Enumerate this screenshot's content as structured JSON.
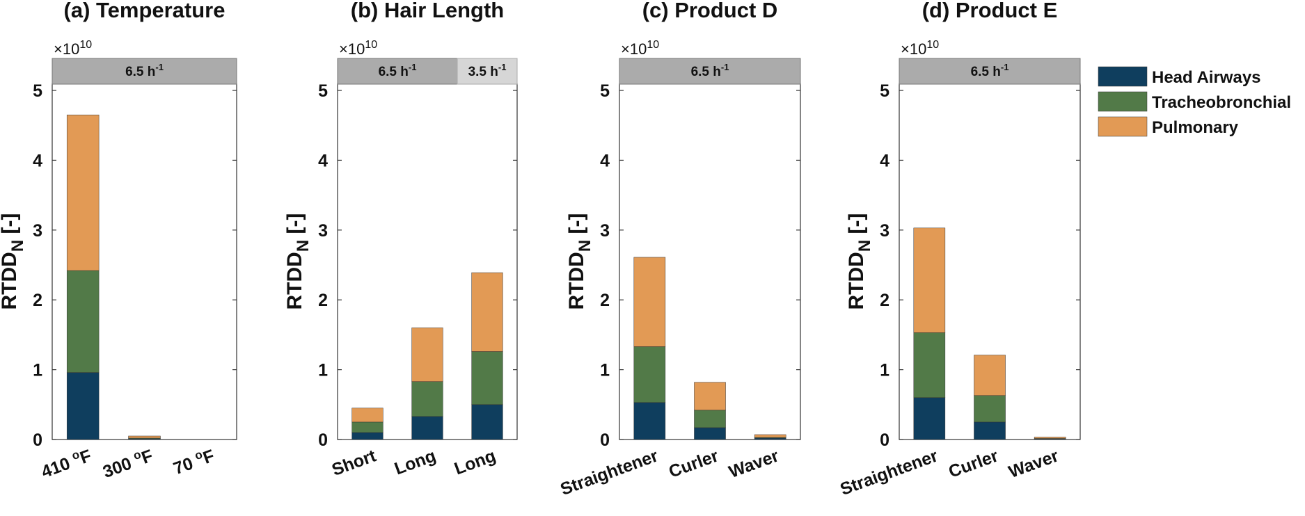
{
  "colors": {
    "head": "#0f3e5e",
    "tracheo": "#527a48",
    "pulm": "#e29a55",
    "band_dark": "#ababab",
    "band_light": "#d6d6d6"
  },
  "legend": [
    "Head Airways",
    "Tracheobronchial",
    "Pulmonary"
  ],
  "chart_data": [
    {
      "type": "bar",
      "stacked": true,
      "title": "(a) Temperature",
      "ylabel": "RTDD",
      "ylabel_sub": "N",
      "ylabel_suffix": " [-]",
      "multiplier": "×10",
      "multiplier_exp": "10",
      "ylim": [
        0,
        5.1
      ],
      "yticks": [
        "0",
        "1",
        "2",
        "3",
        "4",
        "5"
      ],
      "bands": [
        {
          "label": "6.5 h",
          "sup": "-1",
          "shade": "dark",
          "from": 0,
          "to": 3
        }
      ],
      "categories": [
        {
          "label": "410 ",
          "sup": "o",
          "tail": "F"
        },
        {
          "label": "300 ",
          "sup": "o",
          "tail": "F"
        },
        {
          "label": "70 ",
          "sup": "o",
          "tail": "F"
        }
      ],
      "series": [
        {
          "name": "Head Airways",
          "values": [
            0.96,
            0.01,
            0
          ]
        },
        {
          "name": "Tracheobronchial",
          "values": [
            1.46,
            0.01,
            0
          ]
        },
        {
          "name": "Pulmonary",
          "values": [
            2.23,
            0.03,
            0
          ]
        }
      ]
    },
    {
      "type": "bar",
      "stacked": true,
      "title": "(b) Hair Length",
      "ylabel": "RTDD",
      "ylabel_sub": "N",
      "ylabel_suffix": " [-]",
      "multiplier": "×10",
      "multiplier_exp": "10",
      "ylim": [
        0,
        5.1
      ],
      "yticks": [
        "0",
        "1",
        "2",
        "3",
        "4",
        "5"
      ],
      "bands": [
        {
          "label": "6.5 h",
          "sup": "-1",
          "shade": "dark",
          "from": 0,
          "to": 2
        },
        {
          "label": "3.5 h",
          "sup": "-1",
          "shade": "light",
          "from": 2,
          "to": 3
        }
      ],
      "categories": [
        {
          "label": "Short",
          "sup": "",
          "tail": ""
        },
        {
          "label": "Long",
          "sup": "",
          "tail": ""
        },
        {
          "label": "Long",
          "sup": "",
          "tail": ""
        }
      ],
      "series": [
        {
          "name": "Head Airways",
          "values": [
            0.1,
            0.33,
            0.5
          ]
        },
        {
          "name": "Tracheobronchial",
          "values": [
            0.15,
            0.5,
            0.76
          ]
        },
        {
          "name": "Pulmonary",
          "values": [
            0.2,
            0.77,
            1.13
          ]
        }
      ]
    },
    {
      "type": "bar",
      "stacked": true,
      "title": "(c) Product D",
      "ylabel": "RTDD",
      "ylabel_sub": "N",
      "ylabel_suffix": " [-]",
      "multiplier": "×10",
      "multiplier_exp": "10",
      "ylim": [
        0,
        5.1
      ],
      "yticks": [
        "0",
        "1",
        "2",
        "3",
        "4",
        "5"
      ],
      "bands": [
        {
          "label": "6.5 h",
          "sup": "-1",
          "shade": "dark",
          "from": 0,
          "to": 3
        }
      ],
      "categories": [
        {
          "label": "Straightener",
          "sup": "",
          "tail": ""
        },
        {
          "label": "Curler",
          "sup": "",
          "tail": ""
        },
        {
          "label": "Waver",
          "sup": "",
          "tail": ""
        }
      ],
      "series": [
        {
          "name": "Head Airways",
          "values": [
            0.53,
            0.17,
            0.02
          ]
        },
        {
          "name": "Tracheobronchial",
          "values": [
            0.8,
            0.25,
            0.01
          ]
        },
        {
          "name": "Pulmonary",
          "values": [
            1.28,
            0.4,
            0.04
          ]
        }
      ]
    },
    {
      "type": "bar",
      "stacked": true,
      "title": "(d) Product E",
      "ylabel": "RTDD",
      "ylabel_sub": "N",
      "ylabel_suffix": " [-]",
      "multiplier": "×10",
      "multiplier_exp": "10",
      "ylim": [
        0,
        5.1
      ],
      "yticks": [
        "0",
        "1",
        "2",
        "3",
        "4",
        "5"
      ],
      "bands": [
        {
          "label": "6.5 h",
          "sup": "-1",
          "shade": "dark",
          "from": 0,
          "to": 3
        }
      ],
      "categories": [
        {
          "label": "Straightener",
          "sup": "",
          "tail": ""
        },
        {
          "label": "Curler",
          "sup": "",
          "tail": ""
        },
        {
          "label": "Waver",
          "sup": "",
          "tail": ""
        }
      ],
      "series": [
        {
          "name": "Head Airways",
          "values": [
            0.6,
            0.25,
            0.01
          ]
        },
        {
          "name": "Tracheobronchial",
          "values": [
            0.93,
            0.38,
            0.005
          ]
        },
        {
          "name": "Pulmonary",
          "values": [
            1.5,
            0.58,
            0.02
          ]
        }
      ]
    }
  ]
}
